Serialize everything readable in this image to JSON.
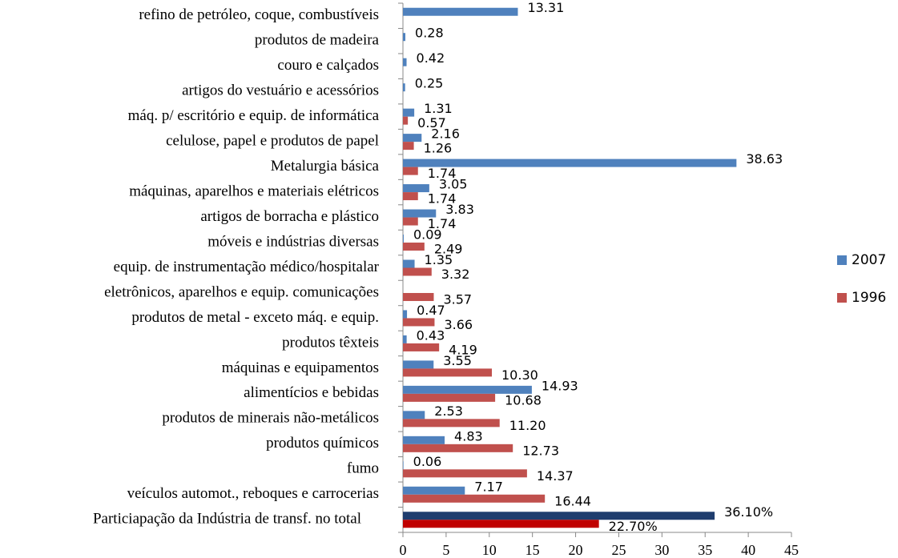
{
  "chart_data": {
    "type": "bar",
    "orientation": "horizontal",
    "categories": [
      "refino de petróleo, coque, combustíveis",
      "produtos de madeira",
      "couro e calçados",
      "artigos do vestuário e acessórios",
      "máq. p/ escritório e equip. de informática",
      "celulose, papel e produtos de papel",
      "Metalurgia básica",
      "máquinas, aparelhos e materiais elétricos",
      "artigos de borracha e plástico",
      "móveis e indústrias diversas",
      "equip. de instrumentação médico/hospitalar",
      "eletrônicos, aparelhos e equip. comunicações",
      "produtos de metal - exceto máq. e equip.",
      "produtos têxteis",
      "máquinas e equipamentos",
      "alimentícios e bebidas",
      "produtos de minerais não-metálicos",
      "produtos químicos",
      "fumo",
      "veículos automot., reboques e carrocerias",
      "Particiapação da Indústria de transf. no total"
    ],
    "series": [
      {
        "name": "2007",
        "color": "#4f81bd",
        "colors": [
          "#4f81bd",
          "#4f81bd",
          "#4f81bd",
          "#4f81bd",
          "#4f81bd",
          "#4f81bd",
          "#4f81bd",
          "#4f81bd",
          "#4f81bd",
          "#4f81bd",
          "#4f81bd",
          "#4f81bd",
          "#4f81bd",
          "#4f81bd",
          "#4f81bd",
          "#4f81bd",
          "#4f81bd",
          "#4f81bd",
          "#4f81bd",
          "#4f81bd",
          "#1f3d6e"
        ],
        "values": [
          13.31,
          0.28,
          0.42,
          0.25,
          1.31,
          2.16,
          38.63,
          3.05,
          3.83,
          0.09,
          1.35,
          null,
          0.47,
          0.43,
          3.55,
          14.93,
          2.53,
          4.83,
          0.06,
          7.17,
          36.1
        ],
        "value_labels": [
          "13.31",
          "0.28",
          "0.42",
          "0.25",
          "1.31",
          "2.16",
          "38.63",
          "3.05",
          "3.83",
          "0.09",
          "1.35",
          null,
          "0.47",
          "0.43",
          "3.55",
          "14.93",
          "2.53",
          "4.83",
          "0.06",
          "7.17",
          "36.10%"
        ]
      },
      {
        "name": "1996",
        "color": "#c0504d",
        "colors": [
          "#c0504d",
          "#c0504d",
          "#c0504d",
          "#c0504d",
          "#c0504d",
          "#c0504d",
          "#c0504d",
          "#c0504d",
          "#c0504d",
          "#c0504d",
          "#c0504d",
          "#c0504d",
          "#c0504d",
          "#c0504d",
          "#c0504d",
          "#c0504d",
          "#c0504d",
          "#c0504d",
          "#c0504d",
          "#c0504d",
          "#c00000"
        ],
        "values": [
          null,
          null,
          null,
          null,
          0.57,
          1.26,
          1.74,
          1.74,
          1.74,
          2.49,
          3.32,
          3.57,
          3.66,
          4.19,
          10.3,
          10.68,
          11.2,
          12.73,
          14.37,
          16.44,
          22.7
        ],
        "value_labels": [
          null,
          null,
          null,
          null,
          "0.57",
          "1.26",
          "1.74",
          "1.74",
          "1.74",
          "2.49",
          "3.32",
          "3.57",
          "3.66",
          "4.19",
          "10.30",
          "10.68",
          "11.20",
          "12.73",
          "14.37",
          "16.44",
          "22.70%"
        ]
      }
    ],
    "xlim": [
      0,
      45
    ],
    "xticks": [
      0,
      5,
      10,
      15,
      20,
      25,
      30,
      35,
      40,
      45
    ],
    "grid": false,
    "legend": "right"
  }
}
